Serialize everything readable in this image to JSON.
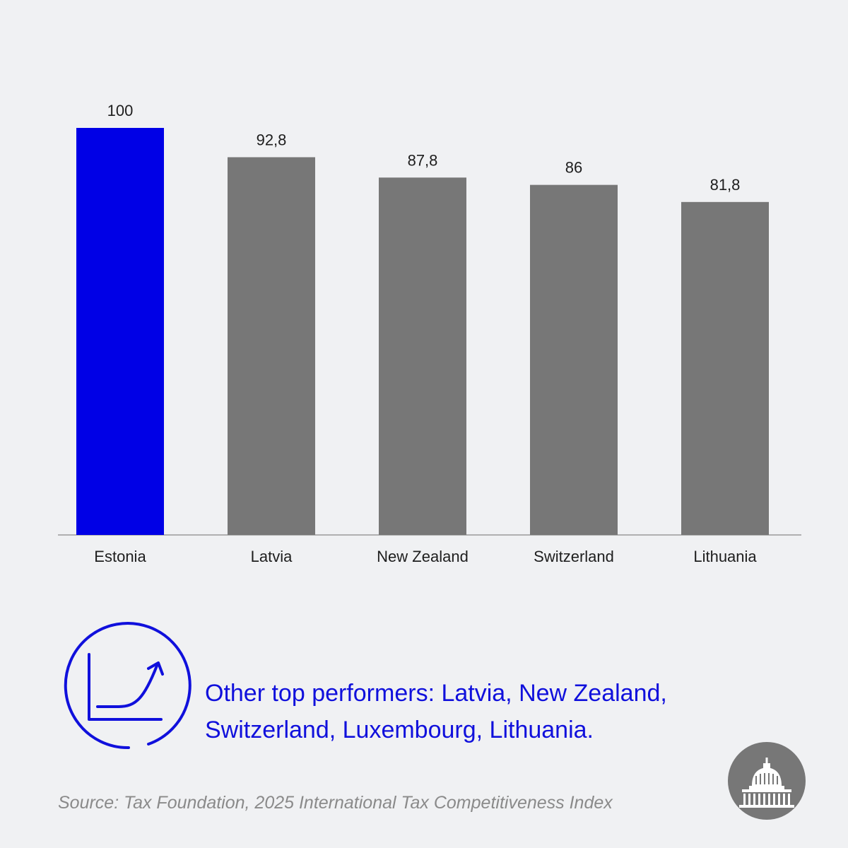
{
  "chart_data": {
    "type": "bar",
    "title": "",
    "xlabel": "",
    "ylabel": "",
    "ylim": [
      0,
      100
    ],
    "categories": [
      "Estonia",
      "Latvia",
      "New Zealand",
      "Switzerland",
      "Lithuania"
    ],
    "values": [
      100,
      92.8,
      87.8,
      86,
      81.8
    ],
    "value_labels": [
      "100",
      "92,8",
      "87,8",
      "86",
      "81,8"
    ],
    "highlight_index": 0,
    "colors": {
      "highlight": "#0000e6",
      "default": "#777777",
      "axis": "#9a9a9a"
    }
  },
  "note": {
    "text": "Other top performers: Latvia, New Zealand, Switzerland, Luxembourg, Lithuania.",
    "icon": "growth-chart-icon",
    "color": "#1010dc"
  },
  "footer": {
    "source": "Source: Tax Foundation, 2025 International Tax Competitiveness Index",
    "logo": "capitol-dome-icon"
  },
  "colors": {
    "background": "#f0f1f3",
    "accent": "#1010dc"
  }
}
